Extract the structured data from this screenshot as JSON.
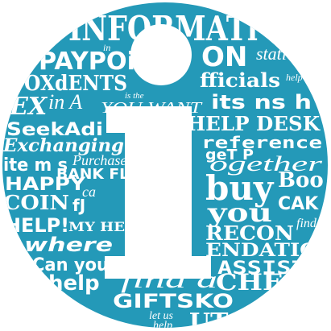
{
  "colors": {
    "background": "#ffffff",
    "ink": "#2499b8"
  },
  "icon": "information-i-icon",
  "words": {
    "information": "INFORMATi",
    "in": "in",
    "payp": "PAYPOi",
    "on": "ON",
    "station": "statio",
    "oxdents": "OXdENTS",
    "officials": "fficials",
    "help": "help",
    "ex": "EX",
    "ina": "in A",
    "isthe": "is the",
    "youwant": "YOU WANT",
    "itsnshr": "its ns h",
    "helpdesk": "HELP DESK",
    "seekadi": "SeekAdi",
    "reference": "reference",
    "exchanging": "Exchanging",
    "purchase": "Purchase",
    "getplt": "geT P",
    "together": "ogether",
    "items": "ite m s",
    "bankfi": "BANK FL",
    "buy": "buy",
    "boo": "Boo",
    "happy": "HAPPY",
    "ca": "ca",
    "you": "you",
    "ca2": "CAK",
    "coin": "COIN",
    "fj": "fJ",
    "reco": "RECON",
    "find": "find",
    "help2": "HELP!",
    "myhe": "MY HE",
    "mend": "ENDATIO",
    "where": "where",
    "assist": "ASSIST",
    "canyou": "Can you",
    "help3": "help",
    "finda": "find a",
    "cheq": "CHEC",
    "gifts": "GIFTSKO",
    "letus": "let us",
    "help4": "help",
    "out": "UT"
  }
}
